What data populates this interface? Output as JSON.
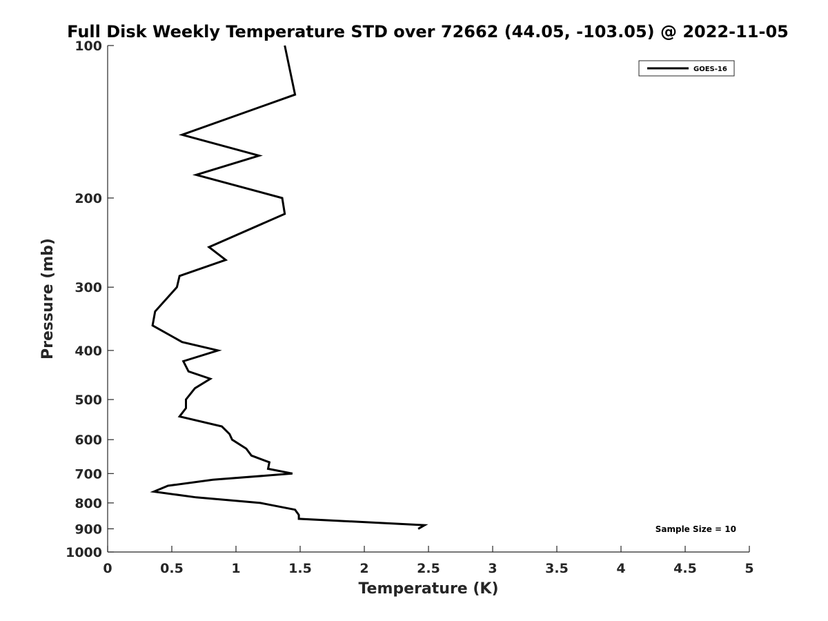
{
  "chart_data": {
    "type": "line",
    "title": "Full Disk Weekly Temperature STD over 72662 (44.05, -103.05) @ 2022-11-05",
    "xlabel": "Temperature (K)",
    "ylabel": "Pressure (mb)",
    "xlim": [
      0,
      5
    ],
    "ylim": [
      100,
      1000
    ],
    "y_scale": "log",
    "y_reversed": true,
    "grid": false,
    "legend_position": "top-right",
    "x_ticks": [
      "0",
      "0.5",
      "1",
      "1.5",
      "2",
      "2.5",
      "3",
      "3.5",
      "4",
      "4.5",
      "5"
    ],
    "y_ticks": [
      "100",
      "200",
      "300",
      "400",
      "500",
      "600",
      "700",
      "800",
      "900",
      "1000"
    ],
    "annotation": "Sample Size = 10",
    "series": [
      {
        "name": "GOES-16",
        "color": "#000000",
        "points": [
          {
            "x": 1.38,
            "y": 100
          },
          {
            "x": 1.46,
            "y": 125
          },
          {
            "x": 0.58,
            "y": 150
          },
          {
            "x": 1.18,
            "y": 165
          },
          {
            "x": 0.69,
            "y": 180
          },
          {
            "x": 1.36,
            "y": 200
          },
          {
            "x": 1.38,
            "y": 215
          },
          {
            "x": 0.79,
            "y": 250
          },
          {
            "x": 0.92,
            "y": 265
          },
          {
            "x": 0.56,
            "y": 285
          },
          {
            "x": 0.54,
            "y": 300
          },
          {
            "x": 0.37,
            "y": 335
          },
          {
            "x": 0.35,
            "y": 357
          },
          {
            "x": 0.58,
            "y": 385
          },
          {
            "x": 0.86,
            "y": 400
          },
          {
            "x": 0.59,
            "y": 420
          },
          {
            "x": 0.63,
            "y": 440
          },
          {
            "x": 0.8,
            "y": 455
          },
          {
            "x": 0.68,
            "y": 475
          },
          {
            "x": 0.61,
            "y": 500
          },
          {
            "x": 0.61,
            "y": 520
          },
          {
            "x": 0.56,
            "y": 540
          },
          {
            "x": 0.89,
            "y": 565
          },
          {
            "x": 0.95,
            "y": 585
          },
          {
            "x": 0.97,
            "y": 600
          },
          {
            "x": 1.08,
            "y": 625
          },
          {
            "x": 1.12,
            "y": 645
          },
          {
            "x": 1.26,
            "y": 665
          },
          {
            "x": 1.25,
            "y": 685
          },
          {
            "x": 1.44,
            "y": 700
          },
          {
            "x": 0.82,
            "y": 720
          },
          {
            "x": 0.47,
            "y": 740
          },
          {
            "x": 0.36,
            "y": 760
          },
          {
            "x": 0.69,
            "y": 780
          },
          {
            "x": 1.19,
            "y": 800
          },
          {
            "x": 1.46,
            "y": 825
          },
          {
            "x": 1.49,
            "y": 845
          },
          {
            "x": 1.49,
            "y": 860
          },
          {
            "x": 2.47,
            "y": 885
          },
          {
            "x": 2.42,
            "y": 900
          }
        ]
      }
    ]
  }
}
